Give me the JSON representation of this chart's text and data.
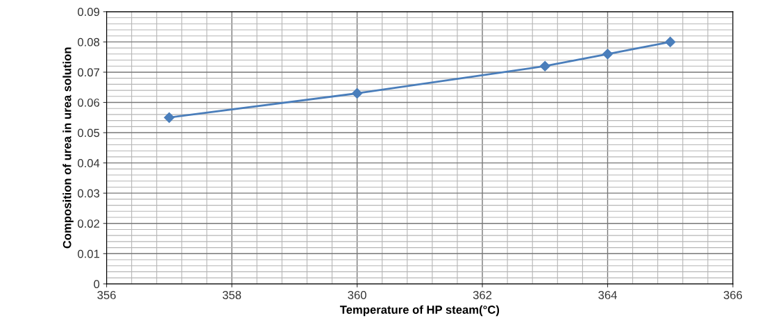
{
  "chart_data": {
    "type": "line",
    "xlabel": "Temperature of HP steam(°C)",
    "ylabel": "Composition of urea in urea solution",
    "x": [
      357,
      360,
      363,
      364,
      365
    ],
    "series": [
      {
        "color": "#4a7ebb",
        "values": [
          0.055,
          0.063,
          0.072,
          0.076,
          0.08
        ]
      }
    ],
    "xlim": [
      356,
      366
    ],
    "xticks": [
      356,
      358,
      360,
      362,
      364,
      366
    ],
    "ylim": [
      0,
      0.09
    ],
    "yticks": [
      0,
      0.01,
      0.02,
      0.03,
      0.04,
      0.05,
      0.06,
      0.07,
      0.08,
      0.09
    ],
    "grid": true,
    "marker": "diamond",
    "line_style": "solid",
    "legend": false
  }
}
